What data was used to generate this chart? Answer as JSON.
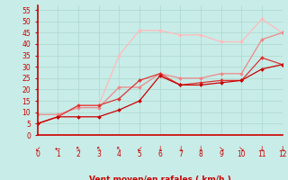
{
  "x": [
    0,
    1,
    2,
    3,
    4,
    5,
    6,
    7,
    8,
    9,
    10,
    11,
    12
  ],
  "line1": [
    5,
    8,
    8,
    8,
    11,
    15,
    26,
    22,
    22,
    23,
    24,
    29,
    31
  ],
  "line2": [
    5,
    8,
    13,
    13,
    16,
    24,
    27,
    22,
    23,
    24,
    24,
    34,
    31
  ],
  "line3": [
    9,
    9,
    12,
    12,
    21,
    21,
    27,
    25,
    25,
    27,
    27,
    42,
    45
  ],
  "line4": [
    5,
    8,
    13,
    13,
    35,
    46,
    46,
    44,
    44,
    41,
    41,
    51,
    45
  ],
  "color1": "#cc0000",
  "color2": "#dd3333",
  "color3": "#ee8888",
  "color4": "#ffbbbb",
  "bg_color": "#c8ece8",
  "grid_color": "#aad8cc",
  "axis_color": "#cc0000",
  "xlabel": "Vent moyen/en rafales ( km/h )",
  "xlim": [
    0,
    12
  ],
  "ylim": [
    0,
    57
  ],
  "yticks": [
    0,
    5,
    10,
    15,
    20,
    25,
    30,
    35,
    40,
    45,
    50,
    55
  ],
  "xticks": [
    0,
    1,
    2,
    3,
    4,
    5,
    6,
    7,
    8,
    9,
    10,
    11,
    12
  ],
  "wind_arrows": [
    "↙",
    "←",
    "↖",
    "↖",
    "↖",
    "↙",
    "↓",
    "↓",
    "↓",
    "↘",
    "↘",
    "↓",
    "↓"
  ]
}
